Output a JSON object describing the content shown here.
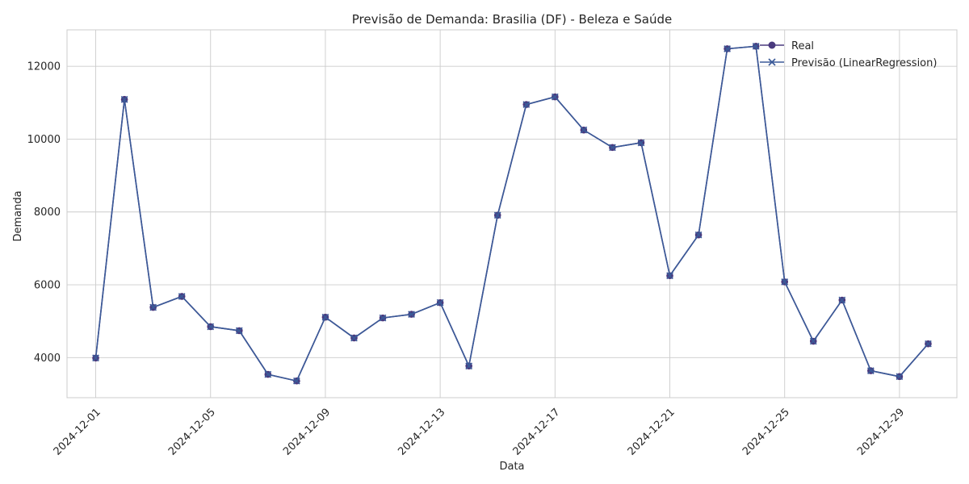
{
  "chart_data": {
    "type": "line",
    "title": "Previsão de Demanda: Brasilia (DF) - Beleza e Saúde",
    "xlabel": "Data",
    "ylabel": "Demanda",
    "x": [
      "2024-12-01",
      "2024-12-02",
      "2024-12-03",
      "2024-12-04",
      "2024-12-05",
      "2024-12-06",
      "2024-12-07",
      "2024-12-08",
      "2024-12-09",
      "2024-12-10",
      "2024-12-11",
      "2024-12-12",
      "2024-12-13",
      "2024-12-14",
      "2024-12-15",
      "2024-12-16",
      "2024-12-17",
      "2024-12-18",
      "2024-12-19",
      "2024-12-20",
      "2024-12-21",
      "2024-12-22",
      "2024-12-23",
      "2024-12-24",
      "2024-12-25",
      "2024-12-26",
      "2024-12-27",
      "2024-12-28",
      "2024-12-29",
      "2024-12-30"
    ],
    "xticks": [
      "2024-12-01",
      "2024-12-05",
      "2024-12-09",
      "2024-12-13",
      "2024-12-17",
      "2024-12-21",
      "2024-12-25",
      "2024-12-29"
    ],
    "xlim": [
      "2024-11-30",
      "2024-12-31"
    ],
    "yticks": [
      4000,
      6000,
      8000,
      10000,
      12000
    ],
    "ylim": [
      2900,
      13000
    ],
    "grid": true,
    "legend_position": "top-right",
    "series": [
      {
        "name": "Real",
        "marker": "circle",
        "color": "#4a3a7e",
        "values": [
          3990,
          11090,
          5380,
          5680,
          4850,
          4740,
          3540,
          3360,
          5110,
          4540,
          5090,
          5190,
          5510,
          3770,
          7910,
          10950,
          11160,
          10250,
          9770,
          9900,
          6250,
          7370,
          12480,
          12550,
          6080,
          4450,
          5580,
          3640,
          3480,
          4380
        ]
      },
      {
        "name": "Previsão (LinearRegression)",
        "marker": "x",
        "color": "#3b5a98",
        "values": [
          3990,
          11090,
          5380,
          5680,
          4850,
          4740,
          3540,
          3360,
          5110,
          4540,
          5090,
          5190,
          5510,
          3770,
          7910,
          10950,
          11160,
          10250,
          9770,
          9900,
          6250,
          7370,
          12480,
          12550,
          6080,
          4450,
          5580,
          3640,
          3480,
          4380
        ]
      }
    ]
  }
}
